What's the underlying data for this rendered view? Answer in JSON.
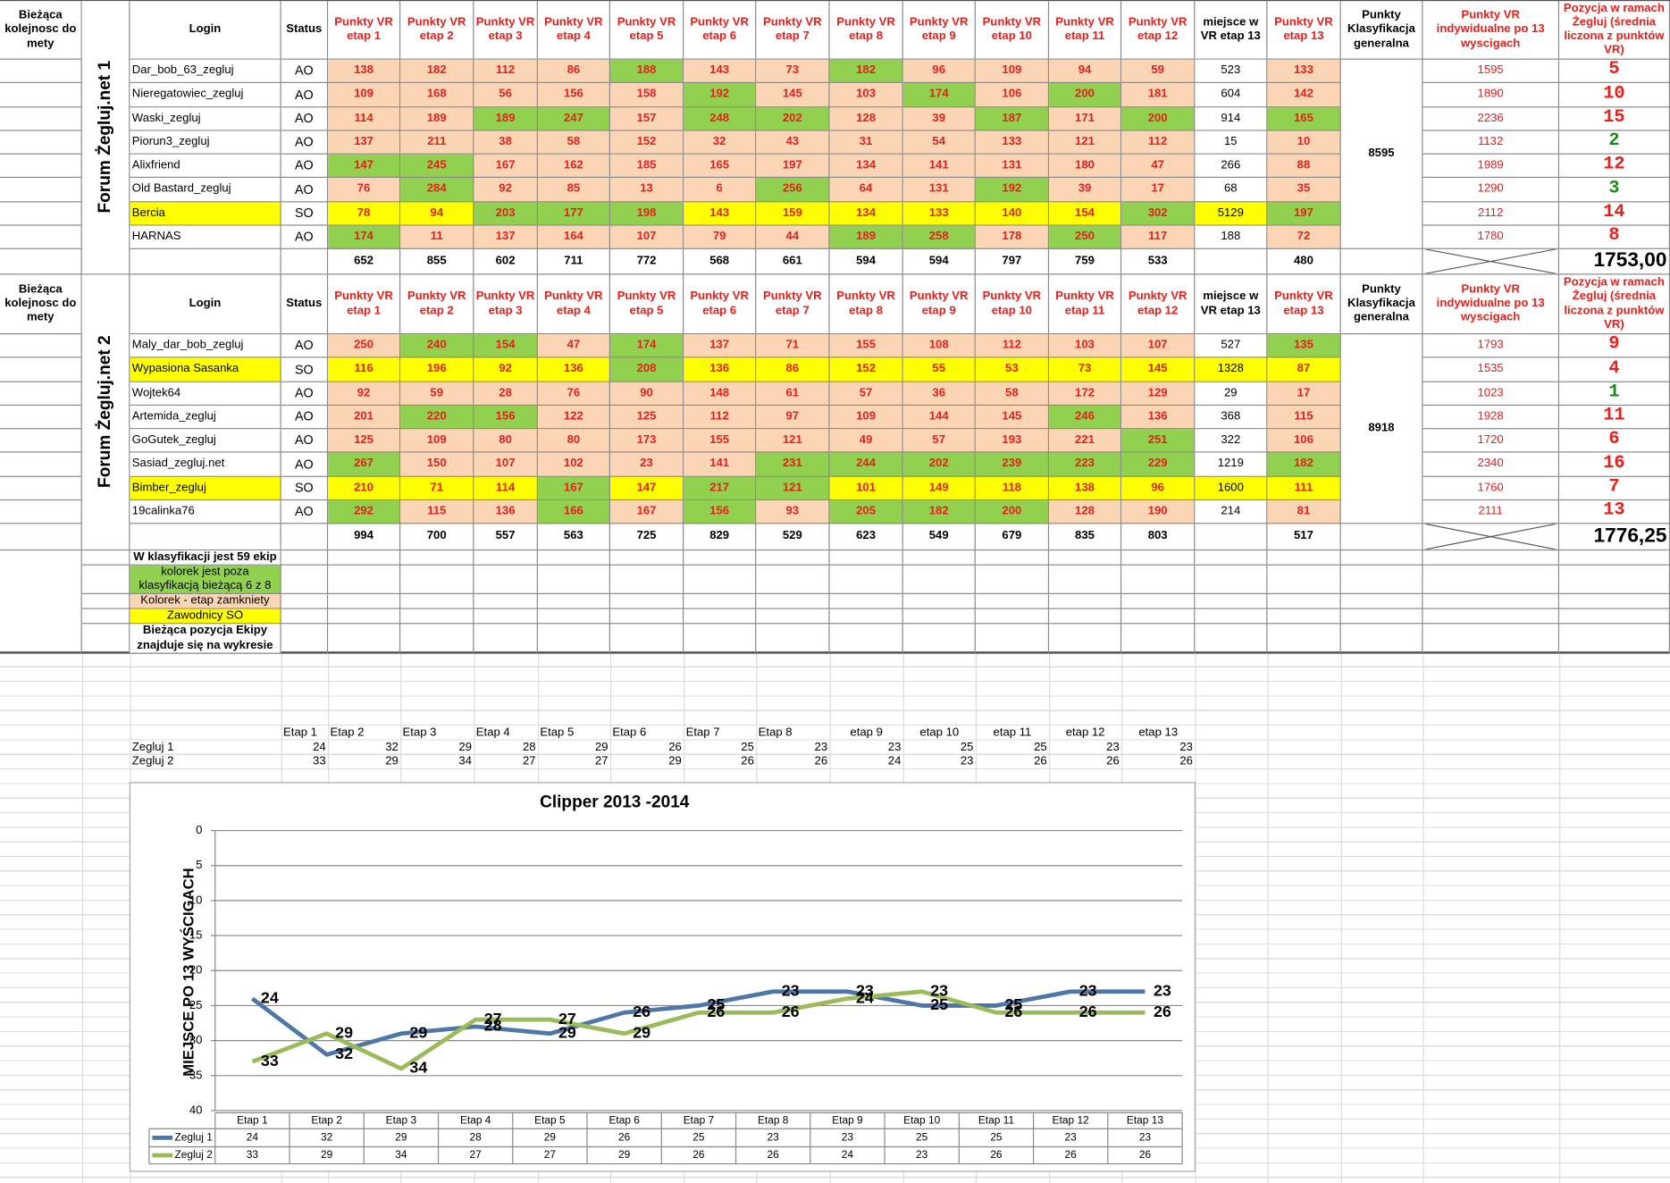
{
  "sheet": {
    "headers": [
      "Bieżąca kolejnosc do mety",
      "Login",
      "Status",
      "Punkty VR etap 1",
      "Punkty VR etap 2",
      "Punkty VR etap 3",
      "Punkty VR etap 4",
      "Punkty VR etap 5",
      "Punkty VR etap 6",
      "Punkty VR etap 7",
      "Punkty VR etap 8",
      "Punkty VR etap 9",
      "Punkty VR etap 10",
      "Punkty VR etap 11",
      "Punkty VR etap 12",
      "miejsce w VR etap 13",
      "Punkty VR etap 13",
      "Punkty Klasyfikacja generalna",
      "Punkty VR indywidualne po 13 wyscigach",
      "Pozycja w ramach Żegluj (średnia liczona z punktów VR)"
    ],
    "colors": {
      "green": "#92d050",
      "stage": {
        "AO": "#fcd5b4",
        "SO": "#ffff00"
      },
      "login": {
        "AO": "#ffffff",
        "SO": "#ffff00"
      },
      "points": "#e8201c"
    },
    "teams": [
      {
        "name": "Forum Żegluj.net 1",
        "general": 8595,
        "rows": [
          {
            "login": "Dar_bob_63_zegluj",
            "status": "AO",
            "stages": [
              138,
              182,
              112,
              86,
              188,
              143,
              73,
              182,
              96,
              109,
              94,
              59
            ],
            "place13": 523,
            "stage13": 133,
            "individual": 1595,
            "position": 5,
            "position_color": "#e8201c",
            "green_stages": [
              5,
              8
            ]
          },
          {
            "login": "Nieregatowiec_zegluj",
            "status": "AO",
            "stages": [
              109,
              168,
              56,
              156,
              158,
              192,
              145,
              103,
              174,
              106,
              200,
              181
            ],
            "place13": 604,
            "stage13": 142,
            "individual": 1890,
            "position": 10,
            "position_color": "#e8201c",
            "green_stages": [
              6,
              9,
              11
            ]
          },
          {
            "login": "Waski_zegluj",
            "status": "AO",
            "stages": [
              114,
              189,
              189,
              247,
              157,
              248,
              202,
              128,
              39,
              187,
              171,
              200
            ],
            "place13": 914,
            "stage13": 165,
            "individual": 2236,
            "position": 15,
            "position_color": "#e8201c",
            "green_stages": [
              3,
              4,
              6,
              7,
              10,
              12,
              13
            ]
          },
          {
            "login": "Piorun3_zegluj",
            "status": "AO",
            "stages": [
              137,
              211,
              38,
              58,
              152,
              32,
              43,
              31,
              54,
              133,
              121,
              112
            ],
            "place13": 15,
            "stage13": 10,
            "individual": 1132,
            "position": 2,
            "position_color": "#1a8c1a",
            "green_stages": []
          },
          {
            "login": "Alixfriend",
            "status": "AO",
            "stages": [
              147,
              245,
              167,
              162,
              185,
              165,
              197,
              134,
              141,
              131,
              180,
              47
            ],
            "place13": 266,
            "stage13": 88,
            "individual": 1989,
            "position": 12,
            "position_color": "#e8201c",
            "green_stages": [
              1,
              2
            ]
          },
          {
            "login": "Old Bastard_zegluj",
            "status": "AO",
            "stages": [
              76,
              284,
              92,
              85,
              13,
              6,
              256,
              64,
              131,
              192,
              39,
              17
            ],
            "place13": 68,
            "stage13": 35,
            "individual": 1290,
            "position": 3,
            "position_color": "#1a8c1a",
            "green_stages": [
              2,
              7,
              10
            ]
          },
          {
            "login": "Bercia",
            "status": "SO",
            "stages": [
              78,
              94,
              203,
              177,
              198,
              143,
              159,
              134,
              133,
              140,
              154,
              302
            ],
            "place13": 5129,
            "stage13": 197,
            "individual": 2112,
            "position": 14,
            "position_color": "#e8201c",
            "green_stages": [
              3,
              4,
              5,
              12,
              13
            ]
          },
          {
            "login": "HARNAS",
            "status": "AO",
            "stages": [
              174,
              11,
              137,
              164,
              107,
              79,
              44,
              189,
              258,
              178,
              250,
              117
            ],
            "place13": 188,
            "stage13": 72,
            "individual": 1780,
            "position": 8,
            "position_color": "#e8201c",
            "green_stages": [
              1,
              8,
              9,
              11
            ]
          }
        ],
        "totals": [
          652,
          855,
          602,
          711,
          772,
          568,
          661,
          594,
          594,
          797,
          759,
          533
        ],
        "total13": 480,
        "average": "1753,00"
      },
      {
        "name": "Forum Żegluj.net 2",
        "general": 8918,
        "rows": [
          {
            "login": "Maly_dar_bob_zegluj",
            "status": "AO",
            "stages": [
              250,
              240,
              154,
              47,
              174,
              137,
              71,
              155,
              108,
              112,
              103,
              107
            ],
            "place13": 527,
            "stage13": 135,
            "individual": 1793,
            "position": 9,
            "position_color": "#e8201c",
            "green_stages": [
              2,
              3,
              5,
              13
            ]
          },
          {
            "login": "Wypasiona Sasanka",
            "status": "SO",
            "stages": [
              116,
              196,
              92,
              136,
              208,
              136,
              86,
              152,
              55,
              53,
              73,
              145
            ],
            "place13": 1328,
            "stage13": 87,
            "individual": 1535,
            "position": 4,
            "position_color": "#e8201c",
            "green_stages": [
              5
            ]
          },
          {
            "login": "Wojtek64",
            "status": "AO",
            "stages": [
              92,
              59,
              28,
              76,
              90,
              148,
              61,
              57,
              36,
              58,
              172,
              129
            ],
            "place13": 29,
            "stage13": 17,
            "individual": 1023,
            "position": 1,
            "position_color": "#1a8c1a",
            "green_stages": []
          },
          {
            "login": "Artemida_zegluj",
            "status": "AO",
            "stages": [
              201,
              220,
              156,
              122,
              125,
              112,
              97,
              109,
              144,
              145,
              246,
              136
            ],
            "place13": 368,
            "stage13": 115,
            "individual": 1928,
            "position": 11,
            "position_color": "#e8201c",
            "green_stages": [
              2,
              3,
              11
            ]
          },
          {
            "login": "GoGutek_zegluj",
            "status": "AO",
            "stages": [
              125,
              109,
              80,
              80,
              173,
              155,
              121,
              49,
              57,
              193,
              221,
              251
            ],
            "place13": 322,
            "stage13": 106,
            "individual": 1720,
            "position": 6,
            "position_color": "#e8201c",
            "green_stages": [
              12
            ]
          },
          {
            "login": "Sasiad_zegluj.net",
            "status": "AO",
            "stages": [
              267,
              150,
              107,
              102,
              23,
              141,
              231,
              244,
              202,
              239,
              223,
              229
            ],
            "place13": 1219,
            "stage13": 182,
            "individual": 2340,
            "position": 16,
            "position_color": "#e8201c",
            "green_stages": [
              1,
              7,
              8,
              9,
              10,
              11,
              12,
              13
            ]
          },
          {
            "login": "Bimber_zegluj",
            "status": "SO",
            "stages": [
              210,
              71,
              114,
              167,
              147,
              217,
              121,
              101,
              149,
              118,
              138,
              96
            ],
            "place13": 1600,
            "stage13": 111,
            "individual": 1760,
            "position": 7,
            "position_color": "#e8201c",
            "green_stages": [
              4,
              6,
              7
            ]
          },
          {
            "login": "19calinka76",
            "status": "AO",
            "stages": [
              292,
              115,
              136,
              166,
              167,
              156,
              93,
              205,
              182,
              200,
              128,
              190
            ],
            "place13": 214,
            "stage13": 81,
            "individual": 2111,
            "position": 13,
            "position_color": "#e8201c",
            "green_stages": [
              1,
              4,
              6,
              8,
              9,
              10
            ]
          }
        ],
        "totals": [
          994,
          700,
          557,
          563,
          725,
          829,
          529,
          623,
          549,
          679,
          835,
          803
        ],
        "total13": 517,
        "average": "1776,25"
      }
    ],
    "legend": [
      {
        "text": "W klasyfikacji jest 59 ekip",
        "color": "#ffffff"
      },
      {
        "text": "kolorek jest  poza klasyfikacją bieżącą 6 z 8",
        "color": "#92d050"
      },
      {
        "text": "Kolorek - etap zamkniety",
        "color": "#fcd5b4"
      },
      {
        "text": "Zawodnicy SO",
        "color": "#ffff00"
      },
      {
        "text": "Bieżąca pozycja Ekipy znajduje się na wykresie",
        "color": "#ffffff"
      }
    ]
  },
  "stage_table": {
    "headers": [
      "Etap 1",
      "Etap 2",
      "Etap 3",
      "Etap 4",
      "Etap 5",
      "Etap 6",
      "Etap 7",
      "Etap 8",
      "etap 9",
      "etap 10",
      "etap 11",
      "etap 12",
      "etap 13"
    ],
    "rows": [
      {
        "name": "Zegluj 1",
        "values": [
          24,
          32,
          29,
          28,
          29,
          26,
          25,
          23,
          23,
          25,
          25,
          23,
          23
        ]
      },
      {
        "name": "Zegluj 2",
        "values": [
          33,
          29,
          34,
          27,
          27,
          29,
          26,
          26,
          24,
          23,
          26,
          26,
          26
        ]
      }
    ]
  },
  "chart_data": {
    "type": "line",
    "title": "Clipper 2013 -2014",
    "y_label": "MIEJSCE PO 13 WYŚCIGACH",
    "categories": [
      "Etap 1",
      "Etap 2",
      "Etap 3",
      "Etap 4",
      "Etap 5",
      "Etap 6",
      "Etap 7",
      "Etap 8",
      "Etap 9",
      "Etap 10",
      "Etap 11",
      "Etap 12",
      "Etap 13"
    ],
    "series": [
      {
        "name": "Zegluj 1",
        "color": "#4f76a8",
        "values": [
          24,
          32,
          29,
          28,
          29,
          26,
          25,
          23,
          23,
          25,
          25,
          23,
          23
        ]
      },
      {
        "name": "Zegluj 2",
        "color": "#9bbb59",
        "values": [
          33,
          29,
          34,
          27,
          27,
          29,
          26,
          26,
          24,
          23,
          26,
          26,
          26
        ]
      }
    ],
    "ylim": [
      0,
      40
    ],
    "yticks": [
      0,
      5,
      10,
      15,
      20,
      25,
      30,
      35,
      40
    ],
    "y_reversed": true,
    "grid": true,
    "data_labels": true,
    "data_table": true
  }
}
